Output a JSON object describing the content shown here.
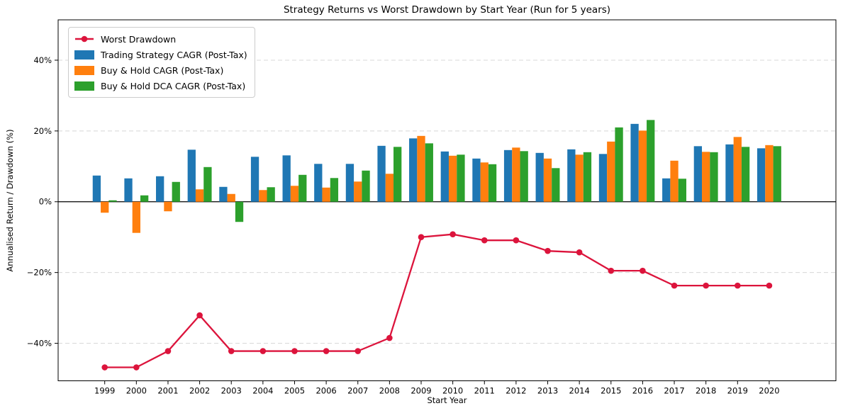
{
  "title": "Strategy Returns vs Worst Drawdown by Start Year (Run for 5 years)",
  "xlabel": "Start Year",
  "ylabel": "Annualised Return / Drawdown (%)",
  "colors": {
    "strategy": "#1f77b4",
    "buy_hold": "#ff7f0e",
    "buy_hold_dca": "#2ca02c",
    "drawdown": "#dc143c",
    "grid": "#d8d8d8",
    "axis": "#000000"
  },
  "chart_data": {
    "type": "bar+line",
    "categories": [
      "1999",
      "2000",
      "2001",
      "2002",
      "2003",
      "2004",
      "2005",
      "2006",
      "2007",
      "2008",
      "2009",
      "2010",
      "2011",
      "2012",
      "2013",
      "2014",
      "2015",
      "2016",
      "2017",
      "2018",
      "2019",
      "2020"
    ],
    "series": [
      {
        "name": "Worst Drawdown",
        "type": "line",
        "color": "#dc143c",
        "values": [
          -46.8,
          -46.8,
          -42.2,
          -32.1,
          -42.2,
          -42.2,
          -42.2,
          -42.2,
          -42.2,
          -38.5,
          -10.0,
          -9.2,
          -10.9,
          -10.9,
          -13.9,
          -14.3,
          -19.5,
          -19.5,
          -23.7,
          -23.7,
          -23.7,
          -23.7
        ]
      },
      {
        "name": "Trading Strategy CAGR (Post-Tax)",
        "type": "bar",
        "color": "#1f77b4",
        "values": [
          7.4,
          6.6,
          7.2,
          14.7,
          4.2,
          12.7,
          13.1,
          10.7,
          10.7,
          15.8,
          17.9,
          14.2,
          12.2,
          14.6,
          13.8,
          14.8,
          13.5,
          22.0,
          6.6,
          15.7,
          16.2,
          15.1
        ]
      },
      {
        "name": "Buy & Hold CAGR (Post-Tax)",
        "type": "bar",
        "color": "#ff7f0e",
        "values": [
          -3.1,
          -8.8,
          -2.7,
          3.5,
          2.2,
          3.3,
          4.5,
          4.0,
          5.7,
          7.9,
          18.6,
          13.0,
          11.1,
          15.3,
          12.2,
          13.3,
          17.0,
          20.1,
          11.6,
          14.1,
          18.3,
          16.0
        ]
      },
      {
        "name": "Buy & Hold DCA CAGR (Post-Tax)",
        "type": "bar",
        "color": "#2ca02c",
        "values": [
          0.4,
          1.8,
          5.6,
          9.8,
          -5.7,
          4.1,
          7.6,
          6.7,
          8.8,
          15.5,
          16.5,
          13.3,
          10.6,
          14.3,
          9.5,
          14.0,
          21.0,
          23.1,
          6.5,
          14.0,
          15.5,
          15.7
        ]
      }
    ],
    "yticks": [
      {
        "v": 40,
        "label": "40%"
      },
      {
        "v": 20,
        "label": "20%"
      },
      {
        "v": 0,
        "label": "0%"
      },
      {
        "v": -20,
        "label": "−20%"
      },
      {
        "v": -40,
        "label": "−40%"
      }
    ],
    "ylim": [
      -50.6,
      51.4
    ],
    "grid": "horizontal-dashed",
    "zero_line": true,
    "legend_position": "upper-left"
  }
}
